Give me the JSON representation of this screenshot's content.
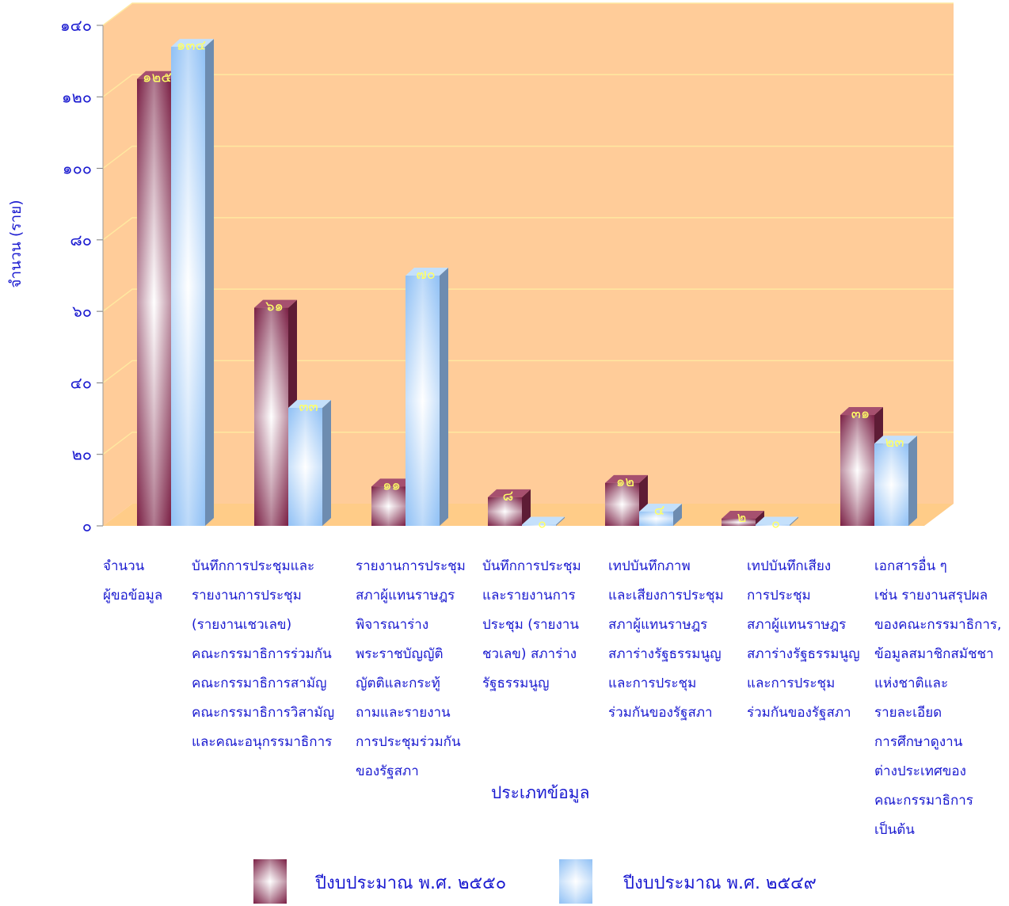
{
  "chart_data": {
    "type": "bar",
    "ylabel": "จำนวน  (ราย)",
    "xlabel": "ประเภทข้อมูล",
    "ylim": [
      0,
      140
    ],
    "yticks": [
      "๐",
      "๒๐",
      "๔๐",
      "๖๐",
      "๘๐",
      "๑๐๐",
      "๑๒๐",
      "๑๔๐"
    ],
    "ytick_values": [
      0,
      20,
      40,
      60,
      80,
      100,
      120,
      140
    ],
    "grid": true,
    "legend_position": "bottom",
    "categories": [
      "จำนวน\nผู้ขอข้อมูล",
      "บันทึกการประชุมและ\nรายงานการประชุม\n(รายงานเชวเลข)\nคณะกรรมาธิการร่วมกัน\nคณะกรรมาธิการสามัญ\nคณะกรรมาธิการวิสามัญ\nและคณะอนุกรรมาธิการ",
      "รายงานการประชุม\nสภาผู้แทนราษฎร\nพิจารณาร่าง\nพระราชบัญญัติ\nญัตติและกระทู้\nถามและรายงาน\nการประชุมร่วมกัน\nของรัฐสภา",
      "บันทึกการประชุม\nและรายงานการ\nประชุม  (รายงาน\nชวเลข)  สภาร่าง\nรัฐธรรมนูญ",
      "เทปบันทึกภาพ\nและเสียงการประชุม\nสภาผู้แทนราษฎร\nสภาร่างรัฐธรรมนูญ\nและการประชุม\nร่วมกันของรัฐสภา",
      "เทปบันทึกเสียง\nการประชุม\nสภาผู้แทนราษฎร\nสภาร่างรัฐธรรมนูญ\nและการประชุม\nร่วมกันของรัฐสภา",
      "เอกสารอื่น ๆ\nเช่น รายงานสรุปผล\nของคณะกรรมาธิการ,\nข้อมูลสมาชิกสมัชชา\nแห่งชาติและ\nรายละเอียด\nการศึกษาดูงาน\nต่างประเทศของ\nคณะกรรมาธิการ\nเป็นต้น"
    ],
    "series": [
      {
        "name": "ปีงบประมาณ พ.ศ. ๒๕๕๐",
        "values": [
          125,
          61,
          11,
          8,
          12,
          2,
          31
        ],
        "labels": [
          "๑๒๕",
          "๖๑",
          "๑๑",
          "๘",
          "๑๒",
          "๒",
          "๓๑"
        ],
        "color": "#8b2a4e"
      },
      {
        "name": "ปีงบประมาณ พ.ศ. ๒๕๔๙",
        "values": [
          134,
          33,
          70,
          0,
          4,
          0,
          23
        ],
        "labels": [
          "๑๓๔",
          "๓๓",
          "๗๐",
          "๐",
          "๔",
          "๐",
          "๒๓"
        ],
        "color": "#9cc8f6"
      }
    ]
  },
  "colors": {
    "plot_back": "#ffcc99",
    "floor": "#ffcc88",
    "gridline": "#ffe8a0",
    "text": "#1a1ad0",
    "value_label": "#ffff66"
  }
}
